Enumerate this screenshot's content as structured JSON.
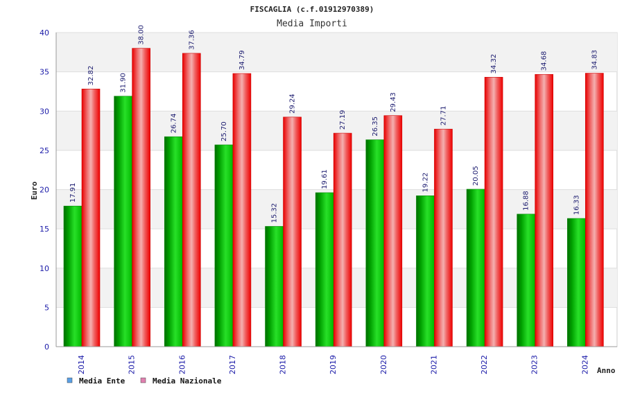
{
  "chart_data": {
    "type": "bar",
    "title": "FISCAGLIA (c.f.01912970389)",
    "subtitle": "Media Importi",
    "xlabel": "Anno",
    "ylabel": "Euro",
    "ylim": [
      0,
      40
    ],
    "yticks": [
      0,
      5,
      10,
      15,
      20,
      25,
      30,
      35,
      40
    ],
    "grid": true,
    "legend_position": "bottom-left",
    "categories": [
      "2014",
      "2015",
      "2016",
      "2017",
      "2018",
      "2019",
      "2020",
      "2021",
      "2022",
      "2023",
      "2024"
    ],
    "series": [
      {
        "name": "Media Ente",
        "color": "#00b400",
        "legend_color": "#5aa0e6",
        "values": [
          17.91,
          31.9,
          26.74,
          25.7,
          15.32,
          19.61,
          26.35,
          19.22,
          20.05,
          16.88,
          16.33
        ],
        "labels": [
          "17.91",
          "31.90",
          "26.74",
          "25.70",
          "15.32",
          "19.61",
          "26.35",
          "19.22",
          "20.05",
          "16.88",
          "16.33"
        ]
      },
      {
        "name": "Media Nazionale",
        "color": "#ee1111",
        "legend_color": "#e080b0",
        "values": [
          32.82,
          38.0,
          37.36,
          34.79,
          29.24,
          27.19,
          29.43,
          27.71,
          34.32,
          34.68,
          34.83
        ],
        "labels": [
          "32.82",
          "38.00",
          "37.36",
          "34.79",
          "29.24",
          "27.19",
          "29.43",
          "27.71",
          "34.32",
          "34.68",
          "34.83"
        ]
      }
    ]
  }
}
